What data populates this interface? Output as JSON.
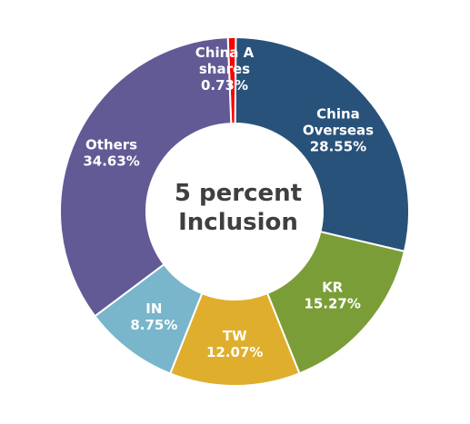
{
  "chart_data": {
    "type": "pie",
    "variant": "donut",
    "center_text": [
      "5 percent",
      "Inclusion"
    ],
    "slices": [
      {
        "label": [
          "China A",
          "shares"
        ],
        "value": 0.73,
        "value_text": "0.73%",
        "color": "#ff0000"
      },
      {
        "label": [
          "China",
          "Overseas"
        ],
        "value": 28.55,
        "value_text": "28.55%",
        "color": "#28527a"
      },
      {
        "label": [
          "KR"
        ],
        "value": 15.27,
        "value_text": "15.27%",
        "color": "#7b9d37"
      },
      {
        "label": [
          "TW"
        ],
        "value": 12.07,
        "value_text": "12.07%",
        "color": "#dfae2c"
      },
      {
        "label": [
          "IN"
        ],
        "value": 8.75,
        "value_text": "8.75%",
        "color": "#79b5cb"
      },
      {
        "label": [
          "Others"
        ],
        "value": 34.63,
        "value_text": "34.63%",
        "color": "#625a95"
      }
    ],
    "legend": "none"
  }
}
